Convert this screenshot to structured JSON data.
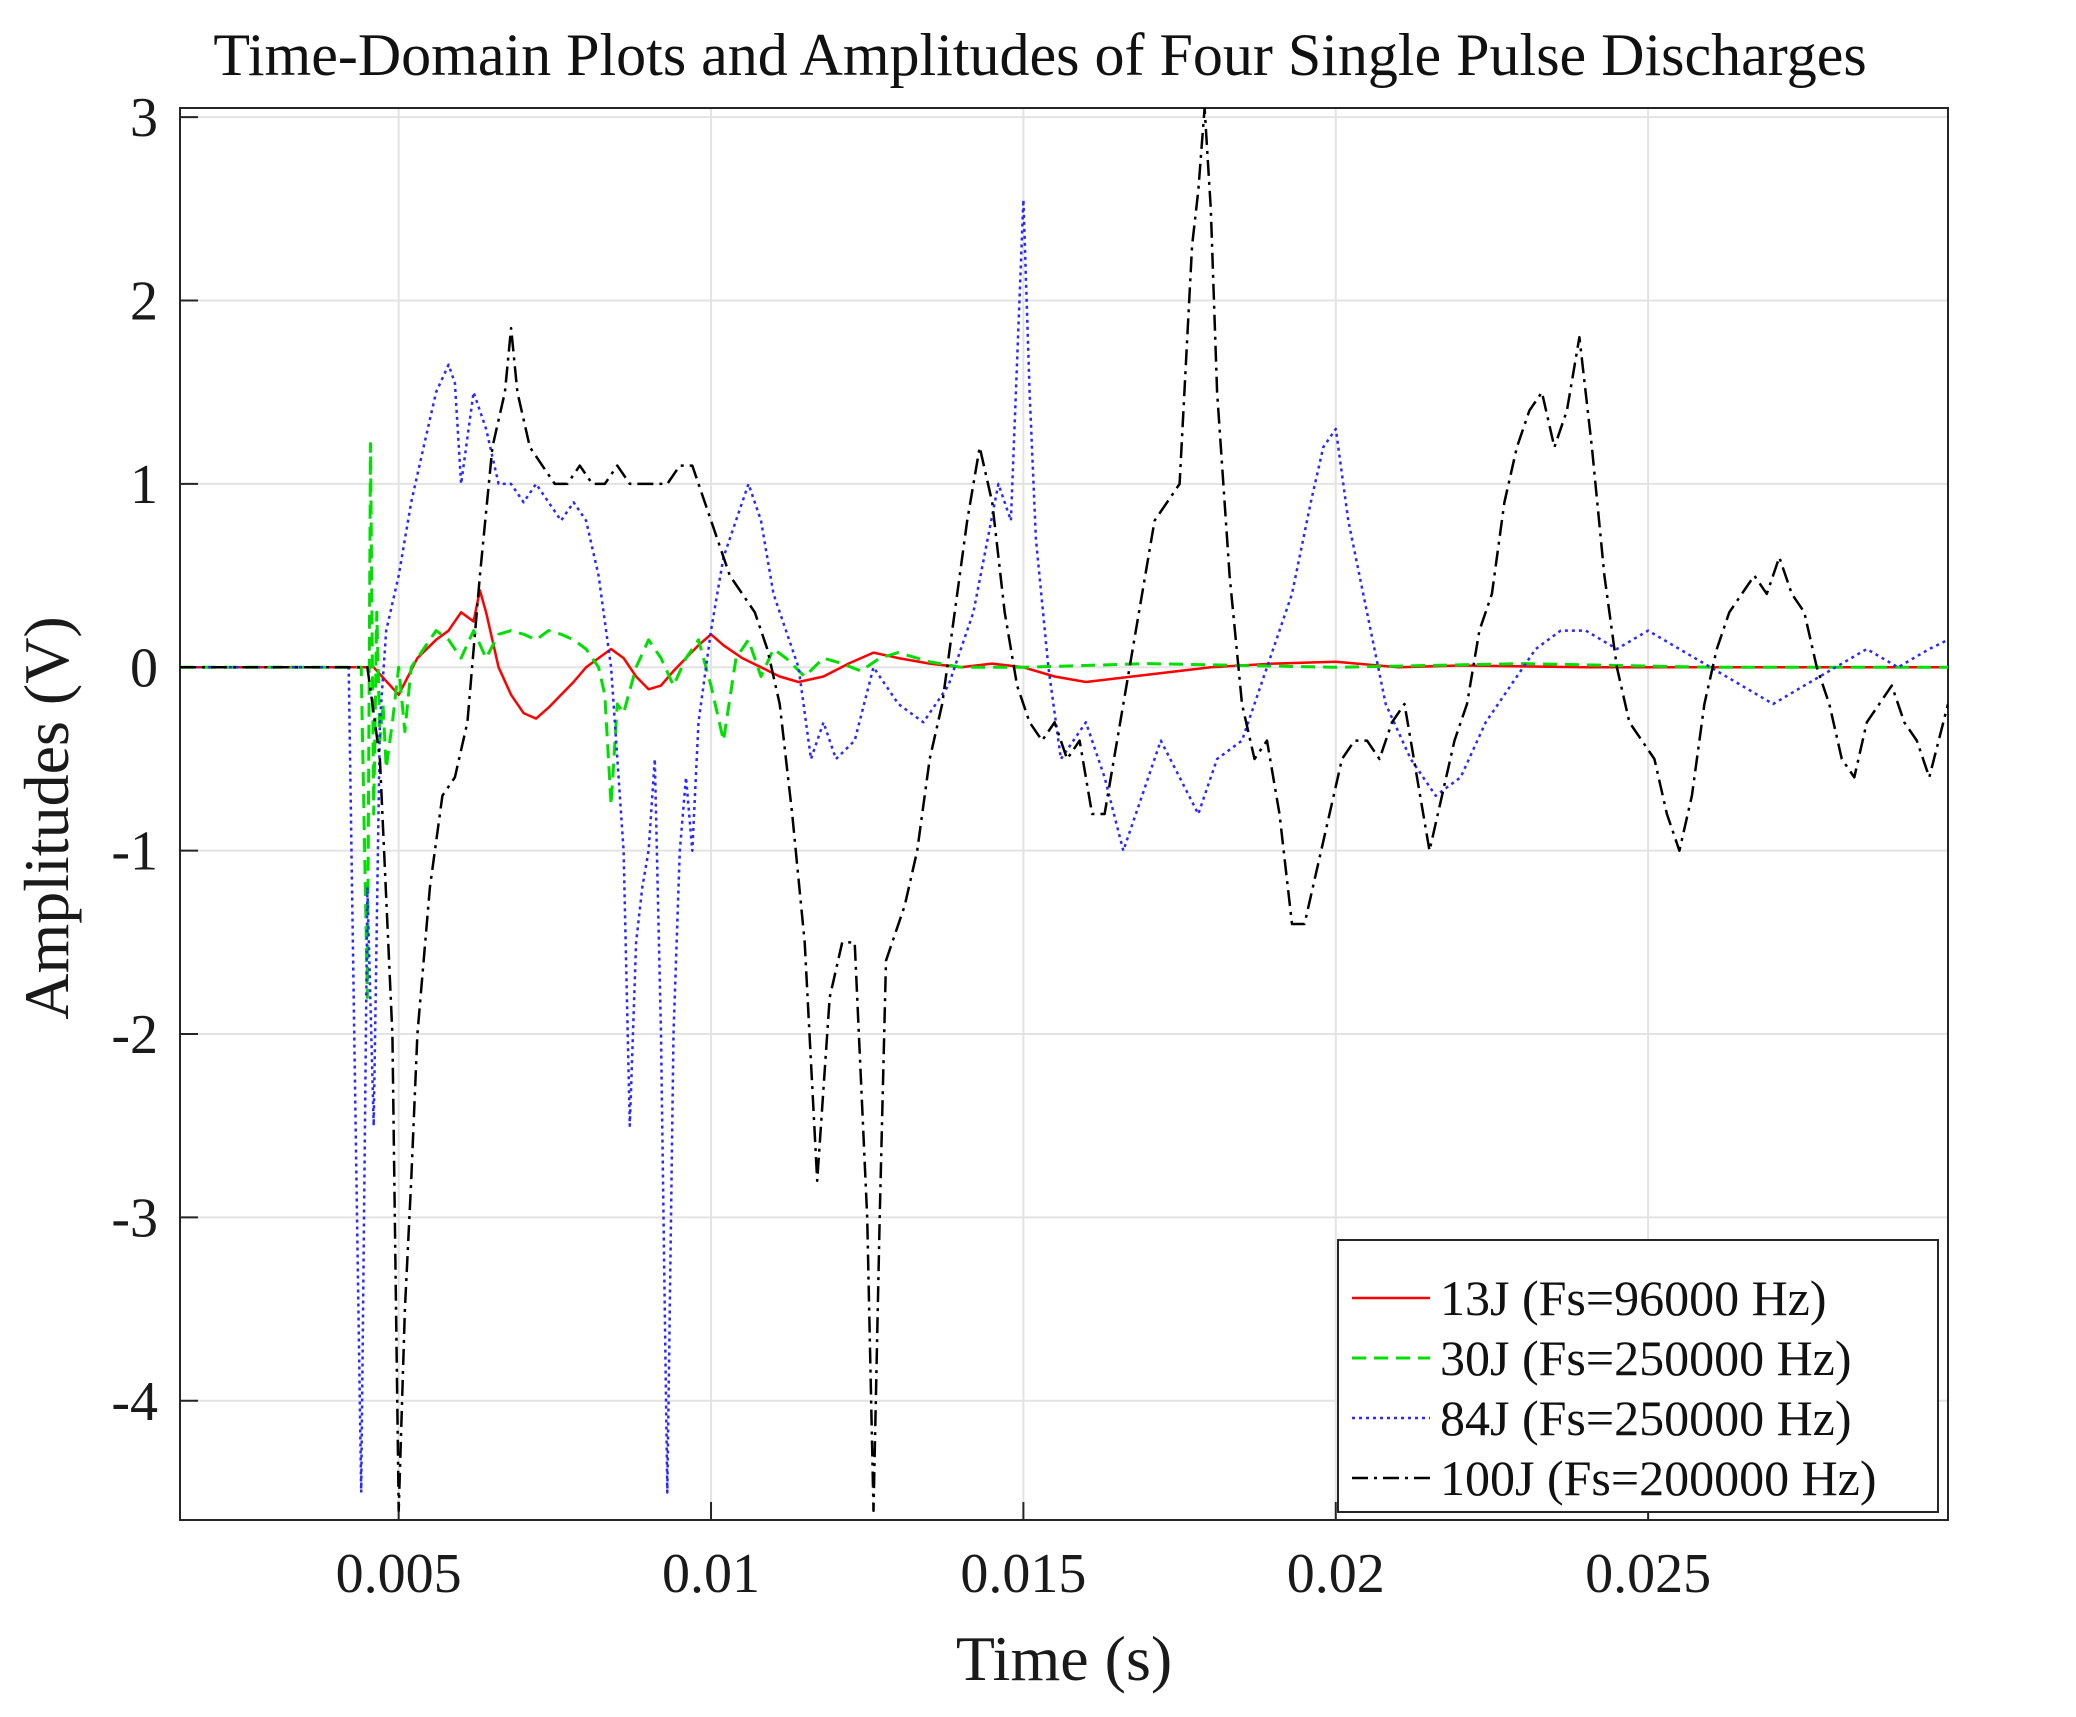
{
  "chart_data": {
    "type": "line",
    "title": "Time-Domain Plots and Amplitudes of Four Single Pulse Discharges",
    "xlabel": "Time (s)",
    "ylabel": "Amplitudes (V)",
    "xlim": [
      0.0015,
      0.0298
    ],
    "ylim": [
      -4.65,
      3.05
    ],
    "x_ticks": [
      0.005,
      0.01,
      0.015,
      0.02,
      0.025
    ],
    "x_tick_labels": [
      "0.005",
      "0.01",
      "0.015",
      "0.02",
      "0.025"
    ],
    "y_ticks": [
      3,
      2,
      1,
      0,
      -1,
      -2,
      -3,
      -4
    ],
    "y_tick_labels": [
      "3",
      "2",
      "1",
      "0",
      "-1",
      "-2",
      "-3",
      "-4"
    ],
    "grid": true,
    "legend_position": "bottom-right",
    "series": [
      {
        "name": "13J (Fs=96000 Hz)",
        "color": "#ff0000",
        "dash": "solid",
        "x": [
          0.0015,
          0.0046,
          0.005,
          0.0053,
          0.0056,
          0.0058,
          0.006,
          0.0062,
          0.0063,
          0.0064,
          0.0066,
          0.0068,
          0.007,
          0.0072,
          0.0074,
          0.0076,
          0.0078,
          0.008,
          0.0082,
          0.0084,
          0.0086,
          0.0088,
          0.009,
          0.0092,
          0.0094,
          0.0096,
          0.0098,
          0.01,
          0.0102,
          0.0105,
          0.0108,
          0.0111,
          0.0114,
          0.0118,
          0.0122,
          0.0126,
          0.013,
          0.0135,
          0.014,
          0.0145,
          0.015,
          0.0155,
          0.016,
          0.017,
          0.018,
          0.019,
          0.02,
          0.021,
          0.022,
          0.024,
          0.026,
          0.028,
          0.0298
        ],
        "y": [
          0.0,
          0.0,
          -0.15,
          0.05,
          0.15,
          0.2,
          0.3,
          0.25,
          0.42,
          0.3,
          0.0,
          -0.15,
          -0.25,
          -0.28,
          -0.22,
          -0.15,
          -0.08,
          0.0,
          0.05,
          0.1,
          0.05,
          -0.05,
          -0.12,
          -0.1,
          -0.02,
          0.05,
          0.12,
          0.18,
          0.12,
          0.05,
          0.0,
          -0.05,
          -0.08,
          -0.05,
          0.02,
          0.08,
          0.05,
          0.02,
          0.0,
          0.02,
          0.0,
          -0.05,
          -0.08,
          -0.04,
          0.0,
          0.02,
          0.03,
          0.0,
          0.01,
          0.0,
          0.0,
          0.0,
          0.0
        ]
      },
      {
        "name": "30J (Fs=250000 Hz)",
        "color": "#00e000",
        "dash": "dashed",
        "x": [
          0.0015,
          0.004,
          0.0044,
          0.0045,
          0.00455,
          0.0046,
          0.00465,
          0.0047,
          0.00475,
          0.0048,
          0.0049,
          0.005,
          0.0051,
          0.0052,
          0.0054,
          0.0056,
          0.0058,
          0.006,
          0.0062,
          0.0064,
          0.0066,
          0.0068,
          0.007,
          0.0072,
          0.0074,
          0.0076,
          0.0078,
          0.008,
          0.0082,
          0.0083,
          0.0084,
          0.0085,
          0.0086,
          0.0088,
          0.009,
          0.0092,
          0.0094,
          0.0096,
          0.0098,
          0.01,
          0.0102,
          0.0104,
          0.0106,
          0.0108,
          0.011,
          0.0112,
          0.0115,
          0.0118,
          0.0121,
          0.0124,
          0.0127,
          0.013,
          0.0135,
          0.014,
          0.015,
          0.017,
          0.02,
          0.023,
          0.026,
          0.0298
        ],
        "y": [
          0.0,
          0.0,
          0.0,
          -1.8,
          1.22,
          -0.8,
          0.3,
          -0.4,
          -0.2,
          -0.55,
          -0.3,
          0.0,
          -0.35,
          0.0,
          0.1,
          0.2,
          0.15,
          0.05,
          0.2,
          0.05,
          0.18,
          0.2,
          0.18,
          0.15,
          0.2,
          0.18,
          0.15,
          0.1,
          0.0,
          -0.15,
          -0.75,
          -0.2,
          -0.25,
          0.0,
          0.15,
          0.05,
          -0.1,
          0.05,
          0.15,
          -0.1,
          -0.4,
          0.05,
          0.15,
          -0.05,
          0.1,
          0.05,
          -0.05,
          0.05,
          0.02,
          -0.02,
          0.05,
          0.08,
          0.03,
          0.0,
          0.0,
          0.02,
          0.0,
          0.02,
          0.0,
          0.0
        ]
      },
      {
        "name": "84J (Fs=250000 Hz)",
        "color": "#2828ff",
        "dash": "dotted",
        "x": [
          0.0015,
          0.0042,
          0.0044,
          0.0045,
          0.0046,
          0.0047,
          0.0048,
          0.005,
          0.0052,
          0.0054,
          0.0056,
          0.0058,
          0.0059,
          0.006,
          0.0062,
          0.0064,
          0.0066,
          0.0068,
          0.007,
          0.0072,
          0.0074,
          0.0076,
          0.0078,
          0.008,
          0.0082,
          0.0084,
          0.0086,
          0.0087,
          0.0088,
          0.0089,
          0.009,
          0.0091,
          0.0092,
          0.0093,
          0.0094,
          0.0095,
          0.0096,
          0.0097,
          0.0098,
          0.01,
          0.0102,
          0.0104,
          0.0106,
          0.0108,
          0.011,
          0.0112,
          0.0114,
          0.0116,
          0.0118,
          0.012,
          0.0123,
          0.0126,
          0.013,
          0.0134,
          0.0138,
          0.0142,
          0.0146,
          0.0148,
          0.015,
          0.0151,
          0.0152,
          0.0154,
          0.0156,
          0.016,
          0.0163,
          0.0166,
          0.0169,
          0.0172,
          0.0175,
          0.0178,
          0.0181,
          0.0185,
          0.0189,
          0.0193,
          0.0196,
          0.0198,
          0.02,
          0.0202,
          0.0205,
          0.0208,
          0.0212,
          0.0216,
          0.022,
          0.0224,
          0.0228,
          0.0232,
          0.0236,
          0.024,
          0.0245,
          0.025,
          0.0255,
          0.026,
          0.0265,
          0.027,
          0.0275,
          0.028,
          0.0285,
          0.029,
          0.0295,
          0.0298
        ],
        "y": [
          0.0,
          0.0,
          -4.5,
          -1.2,
          -2.5,
          -0.3,
          0.2,
          0.5,
          0.9,
          1.2,
          1.5,
          1.65,
          1.55,
          1.0,
          1.5,
          1.3,
          1.0,
          1.0,
          0.9,
          1.0,
          0.9,
          0.8,
          0.9,
          0.8,
          0.5,
          0.0,
          -1.0,
          -2.5,
          -1.5,
          -1.2,
          -1.0,
          -0.5,
          -2.0,
          -4.5,
          -2.0,
          -1.0,
          -0.6,
          -1.0,
          -0.3,
          0.2,
          0.6,
          0.8,
          1.0,
          0.8,
          0.4,
          0.2,
          0.0,
          -0.5,
          -0.3,
          -0.5,
          -0.4,
          0.0,
          -0.2,
          -0.3,
          -0.1,
          0.3,
          1.0,
          0.8,
          2.55,
          1.5,
          0.7,
          0.0,
          -0.5,
          -0.3,
          -0.6,
          -1.0,
          -0.7,
          -0.4,
          -0.6,
          -0.8,
          -0.5,
          -0.4,
          0.0,
          0.4,
          0.9,
          1.2,
          1.3,
          0.8,
          0.3,
          -0.2,
          -0.5,
          -0.7,
          -0.6,
          -0.3,
          -0.1,
          0.1,
          0.2,
          0.2,
          0.1,
          0.2,
          0.1,
          0.0,
          -0.1,
          -0.2,
          -0.1,
          0.0,
          0.1,
          0.0,
          0.1,
          0.15
        ]
      },
      {
        "name": "100J (Fs=200000 Hz)",
        "color": "#000000",
        "dash": "dashdot",
        "x": [
          0.0015,
          0.0045,
          0.0047,
          0.0049,
          0.005,
          0.0051,
          0.0052,
          0.0053,
          0.0055,
          0.0057,
          0.0059,
          0.0061,
          0.0063,
          0.0065,
          0.0067,
          0.0068,
          0.0069,
          0.0071,
          0.0073,
          0.0075,
          0.0077,
          0.0079,
          0.0081,
          0.0083,
          0.0085,
          0.0087,
          0.0089,
          0.0091,
          0.0093,
          0.0095,
          0.0097,
          0.0099,
          0.0101,
          0.0103,
          0.0105,
          0.0107,
          0.0109,
          0.0111,
          0.0113,
          0.0115,
          0.0117,
          0.0119,
          0.0121,
          0.0123,
          0.0125,
          0.0126,
          0.0127,
          0.0128,
          0.0129,
          0.0131,
          0.0133,
          0.0135,
          0.0137,
          0.0139,
          0.0141,
          0.0143,
          0.0145,
          0.0147,
          0.0149,
          0.0151,
          0.0153,
          0.0155,
          0.0157,
          0.0159,
          0.0161,
          0.0163,
          0.0165,
          0.0167,
          0.0169,
          0.0171,
          0.0173,
          0.0175,
          0.0177,
          0.0178,
          0.0179,
          0.018,
          0.0181,
          0.0183,
          0.0185,
          0.0187,
          0.0189,
          0.0191,
          0.0193,
          0.0195,
          0.0197,
          0.0199,
          0.0201,
          0.0203,
          0.0205,
          0.0207,
          0.0209,
          0.0211,
          0.0213,
          0.0215,
          0.0217,
          0.0219,
          0.0221,
          0.0223,
          0.0225,
          0.0227,
          0.0229,
          0.0231,
          0.0233,
          0.0235,
          0.0237,
          0.0239,
          0.0241,
          0.0243,
          0.0245,
          0.0247,
          0.0249,
          0.0251,
          0.0253,
          0.0255,
          0.0257,
          0.0259,
          0.0261,
          0.0263,
          0.0265,
          0.0267,
          0.0269,
          0.0271,
          0.0273,
          0.0275,
          0.0277,
          0.0279,
          0.0281,
          0.0283,
          0.0285,
          0.0287,
          0.0289,
          0.0291,
          0.0293,
          0.0295,
          0.0298
        ],
        "y": [
          0.0,
          0.0,
          -0.5,
          -2.0,
          -4.6,
          -3.5,
          -2.8,
          -2.0,
          -1.2,
          -0.7,
          -0.6,
          -0.3,
          0.5,
          1.2,
          1.5,
          1.85,
          1.5,
          1.2,
          1.1,
          1.0,
          1.0,
          1.1,
          1.0,
          1.0,
          1.1,
          1.0,
          1.0,
          1.0,
          1.0,
          1.1,
          1.1,
          0.9,
          0.7,
          0.5,
          0.4,
          0.3,
          0.1,
          -0.2,
          -0.8,
          -1.5,
          -2.8,
          -1.8,
          -1.5,
          -1.5,
          -3.0,
          -4.6,
          -3.0,
          -1.6,
          -1.5,
          -1.3,
          -1.0,
          -0.5,
          -0.2,
          0.3,
          0.8,
          1.2,
          0.9,
          0.3,
          -0.1,
          -0.3,
          -0.4,
          -0.3,
          -0.5,
          -0.4,
          -0.8,
          -0.8,
          -0.4,
          0.0,
          0.4,
          0.8,
          0.9,
          1.0,
          2.3,
          2.6,
          3.05,
          2.5,
          1.5,
          0.5,
          -0.2,
          -0.5,
          -0.4,
          -0.8,
          -1.4,
          -1.4,
          -1.1,
          -0.8,
          -0.5,
          -0.4,
          -0.4,
          -0.5,
          -0.3,
          -0.2,
          -0.6,
          -1.0,
          -0.7,
          -0.4,
          -0.2,
          0.2,
          0.4,
          0.9,
          1.2,
          1.4,
          1.5,
          1.2,
          1.4,
          1.8,
          1.2,
          0.5,
          0.0,
          -0.3,
          -0.4,
          -0.5,
          -0.8,
          -1.0,
          -0.7,
          -0.2,
          0.1,
          0.3,
          0.4,
          0.5,
          0.4,
          0.6,
          0.4,
          0.3,
          0.0,
          -0.2,
          -0.5,
          -0.6,
          -0.3,
          -0.2,
          -0.1,
          -0.3,
          -0.4,
          -0.6,
          -0.2
        ]
      }
    ]
  }
}
